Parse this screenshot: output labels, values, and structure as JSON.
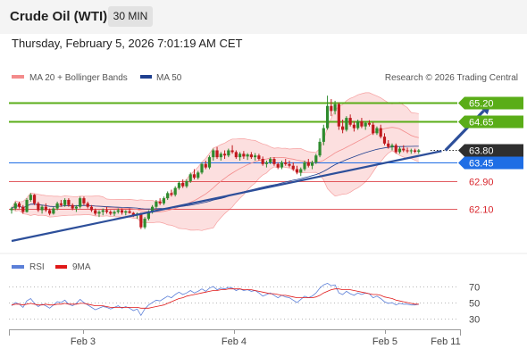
{
  "header": {
    "title": "Crude Oil (WTI)",
    "interval": "30 MIN",
    "timestamp": "Thursday, February 5, 2026 7:01:19 AM CET"
  },
  "colors": {
    "resistance": "#5aad18",
    "support": "#d9272e",
    "trendline": "#2d4f9a",
    "current_price": "#2f2f2f",
    "pivot": "#1f6ee5",
    "candle_up": "#2e8b2e",
    "candle_down": "#c0191e",
    "bollinger": "#f8b8b8",
    "ma50": "#1f3f8f",
    "rsi": "#5b7fd8",
    "rsi_ma": "#e01818"
  },
  "chart_data": [
    {
      "type": "candlestick",
      "legend": [
        {
          "name": "MA 20 + Bollinger Bands",
          "color": "#f38b8b"
        },
        {
          "name": "MA 50",
          "color": "#1f3f8f"
        }
      ],
      "watermark": "Research © 2026 Trading Central",
      "ylim": [
        61.2,
        65.6
      ],
      "levels": [
        {
          "value": 65.2,
          "label": "65.20",
          "kind": "resistance"
        },
        {
          "value": 64.65,
          "label": "64.65",
          "kind": "resistance"
        },
        {
          "value": 63.8,
          "label": "63.80",
          "kind": "current"
        },
        {
          "value": 63.45,
          "label": "63.45",
          "kind": "pivot"
        },
        {
          "value": 62.9,
          "label": "62.90",
          "kind": "support"
        },
        {
          "value": 62.1,
          "label": "62.10",
          "kind": "support"
        }
      ],
      "x_ticks": [
        "Feb 3",
        "Feb 4",
        "Feb 5",
        "Feb 11"
      ],
      "trendline": {
        "from": {
          "bar": 0,
          "value": 61.15
        },
        "to": {
          "bar": 113,
          "value": 63.78
        }
      },
      "forecast_arrow": {
        "from": {
          "bar": 114,
          "value": 63.8
        },
        "to": {
          "bar": 126,
          "value": 65.18
        }
      },
      "candles": [
        [
          62.05,
          62.15,
          61.95,
          62.1
        ],
        [
          62.1,
          62.3,
          62.05,
          62.25
        ],
        [
          62.25,
          62.3,
          62.1,
          62.15
        ],
        [
          62.15,
          62.2,
          61.95,
          62.0
        ],
        [
          62.0,
          62.4,
          61.98,
          62.35
        ],
        [
          62.35,
          62.55,
          62.3,
          62.5
        ],
        [
          62.5,
          62.52,
          62.2,
          62.25
        ],
        [
          62.25,
          62.3,
          62.0,
          62.05
        ],
        [
          62.05,
          62.2,
          61.95,
          62.15
        ],
        [
          62.15,
          62.25,
          62.0,
          62.05
        ],
        [
          62.05,
          62.1,
          61.9,
          61.95
        ],
        [
          61.95,
          62.15,
          61.92,
          62.1
        ],
        [
          62.1,
          62.3,
          62.05,
          62.25
        ],
        [
          62.25,
          62.35,
          62.15,
          62.2
        ],
        [
          62.2,
          62.4,
          62.15,
          62.35
        ],
        [
          62.35,
          62.4,
          62.15,
          62.2
        ],
        [
          62.2,
          62.25,
          62.05,
          62.1
        ],
        [
          62.1,
          62.2,
          62.0,
          62.15
        ],
        [
          62.15,
          62.45,
          62.1,
          62.4
        ],
        [
          62.4,
          62.45,
          62.2,
          62.25
        ],
        [
          62.25,
          62.3,
          62.1,
          62.15
        ],
        [
          62.15,
          62.2,
          62.0,
          62.05
        ],
        [
          62.05,
          62.1,
          61.9,
          61.95
        ],
        [
          61.95,
          62.05,
          61.85,
          62.0
        ],
        [
          62.0,
          62.1,
          61.9,
          62.05
        ],
        [
          62.05,
          62.15,
          61.95,
          62.0
        ],
        [
          62.0,
          62.05,
          61.9,
          61.95
        ],
        [
          61.95,
          62.05,
          61.88,
          62.0
        ],
        [
          62.0,
          62.1,
          61.95,
          62.05
        ],
        [
          62.05,
          62.1,
          61.92,
          61.98
        ],
        [
          61.98,
          62.05,
          61.9,
          62.02
        ],
        [
          62.02,
          62.1,
          61.95,
          61.97
        ],
        [
          61.97,
          62.0,
          61.85,
          61.9
        ],
        [
          61.9,
          61.98,
          61.8,
          61.95
        ],
        [
          61.95,
          61.98,
          61.5,
          61.55
        ],
        [
          61.55,
          61.85,
          61.5,
          61.8
        ],
        [
          61.8,
          62.05,
          61.75,
          62.0
        ],
        [
          62.0,
          62.2,
          61.95,
          62.15
        ],
        [
          62.15,
          62.35,
          62.1,
          62.3
        ],
        [
          62.3,
          62.4,
          62.2,
          62.25
        ],
        [
          62.25,
          62.45,
          62.2,
          62.4
        ],
        [
          62.4,
          62.6,
          62.35,
          62.55
        ],
        [
          62.55,
          62.65,
          62.45,
          62.5
        ],
        [
          62.5,
          62.75,
          62.45,
          62.7
        ],
        [
          62.7,
          62.9,
          62.65,
          62.85
        ],
        [
          62.85,
          62.95,
          62.7,
          62.75
        ],
        [
          62.75,
          62.95,
          62.7,
          62.9
        ],
        [
          62.9,
          63.15,
          62.85,
          63.1
        ],
        [
          63.1,
          63.25,
          62.95,
          63.0
        ],
        [
          63.0,
          63.2,
          62.95,
          63.15
        ],
        [
          63.15,
          63.45,
          63.1,
          63.4
        ],
        [
          63.4,
          63.5,
          63.25,
          63.3
        ],
        [
          63.3,
          63.65,
          63.25,
          63.6
        ],
        [
          63.6,
          63.85,
          63.5,
          63.8
        ],
        [
          63.8,
          63.9,
          63.55,
          63.6
        ],
        [
          63.6,
          63.75,
          63.5,
          63.7
        ],
        [
          63.7,
          63.8,
          63.55,
          63.65
        ],
        [
          63.65,
          63.85,
          63.6,
          63.8
        ],
        [
          63.8,
          63.95,
          63.7,
          63.75
        ],
        [
          63.75,
          63.8,
          63.55,
          63.6
        ],
        [
          63.6,
          63.75,
          63.5,
          63.7
        ],
        [
          63.7,
          63.78,
          63.55,
          63.62
        ],
        [
          63.62,
          63.72,
          63.52,
          63.68
        ],
        [
          63.68,
          63.75,
          63.55,
          63.6
        ],
        [
          63.6,
          63.72,
          63.5,
          63.65
        ],
        [
          63.65,
          63.7,
          63.5,
          63.55
        ],
        [
          63.55,
          63.62,
          63.35,
          63.4
        ],
        [
          63.4,
          63.5,
          63.3,
          63.45
        ],
        [
          63.45,
          63.6,
          63.4,
          63.55
        ],
        [
          63.55,
          63.6,
          63.35,
          63.4
        ],
        [
          63.4,
          63.45,
          63.25,
          63.3
        ],
        [
          63.3,
          63.5,
          63.25,
          63.45
        ],
        [
          63.45,
          63.55,
          63.35,
          63.4
        ],
        [
          63.4,
          63.5,
          63.3,
          63.35
        ],
        [
          63.35,
          63.45,
          63.2,
          63.25
        ],
        [
          63.25,
          63.35,
          63.1,
          63.15
        ],
        [
          63.15,
          63.3,
          63.05,
          63.25
        ],
        [
          63.25,
          63.5,
          63.2,
          63.45
        ],
        [
          63.45,
          63.55,
          63.3,
          63.35
        ],
        [
          63.35,
          63.5,
          63.25,
          63.45
        ],
        [
          63.45,
          63.7,
          63.4,
          63.65
        ],
        [
          63.65,
          64.15,
          63.6,
          64.05
        ],
        [
          64.05,
          64.55,
          63.95,
          64.45
        ],
        [
          64.45,
          65.4,
          64.4,
          65.1
        ],
        [
          65.1,
          65.3,
          64.8,
          64.95
        ],
        [
          64.95,
          65.25,
          64.85,
          65.15
        ],
        [
          65.15,
          65.2,
          64.4,
          64.5
        ],
        [
          64.5,
          64.7,
          64.3,
          64.4
        ],
        [
          64.4,
          64.8,
          64.35,
          64.75
        ],
        [
          64.75,
          64.85,
          64.5,
          64.55
        ],
        [
          64.55,
          64.65,
          64.35,
          64.45
        ],
        [
          64.45,
          64.7,
          64.4,
          64.65
        ],
        [
          64.65,
          64.75,
          64.45,
          64.5
        ],
        [
          64.5,
          64.65,
          64.4,
          64.6
        ],
        [
          64.6,
          64.68,
          64.5,
          64.55
        ],
        [
          64.55,
          64.62,
          64.25,
          64.3
        ],
        [
          64.3,
          64.5,
          64.25,
          64.45
        ],
        [
          64.45,
          64.55,
          64.15,
          64.2
        ],
        [
          64.2,
          64.3,
          63.95,
          64.0
        ],
        [
          64.0,
          64.1,
          63.85,
          63.9
        ],
        [
          63.9,
          64.0,
          63.8,
          63.95
        ],
        [
          63.95,
          64.0,
          63.7,
          63.75
        ],
        [
          63.75,
          63.9,
          63.7,
          63.85
        ],
        [
          63.85,
          63.95,
          63.75,
          63.8
        ],
        [
          63.8,
          63.88,
          63.72,
          63.78
        ],
        [
          63.78,
          63.85,
          63.7,
          63.8
        ],
        [
          63.8,
          63.85,
          63.72,
          63.76
        ],
        [
          63.76,
          63.84,
          63.7,
          63.8
        ]
      ]
    },
    {
      "type": "line",
      "legend": [
        {
          "name": "RSI",
          "color": "#5b7fd8"
        },
        {
          "name": "9MA",
          "color": "#e01818"
        }
      ],
      "ylim": [
        25,
        80
      ],
      "y_ticks": [
        70,
        50,
        30
      ],
      "y_tick_labels": [
        "70",
        "50",
        "30"
      ],
      "series": [
        {
          "name": "RSI",
          "values": [
            46,
            50,
            48,
            44,
            52,
            55,
            49,
            45,
            48,
            46,
            43,
            47,
            51,
            50,
            53,
            48,
            46,
            49,
            54,
            50,
            47,
            44,
            41,
            43,
            45,
            44,
            42,
            44,
            46,
            43,
            45,
            43,
            40,
            42,
            34,
            42,
            47,
            50,
            53,
            52,
            55,
            58,
            56,
            60,
            63,
            60,
            62,
            65,
            62,
            64,
            67,
            64,
            68,
            70,
            66,
            68,
            67,
            69,
            68,
            65,
            67,
            65,
            66,
            64,
            65,
            62,
            58,
            60,
            62,
            59,
            56,
            59,
            57,
            56,
            53,
            50,
            54,
            58,
            56,
            58,
            62,
            68,
            72,
            74,
            71,
            72,
            62,
            60,
            64,
            61,
            59,
            62,
            60,
            62,
            61,
            56,
            58,
            55,
            51,
            49,
            50,
            47,
            49,
            48,
            48,
            47,
            47,
            48
          ]
        },
        {
          "name": "9MA",
          "values": [
            47,
            48,
            48,
            47,
            48,
            49,
            48,
            47,
            47,
            48,
            47,
            47,
            48,
            48,
            49,
            48,
            48,
            48,
            49,
            49,
            48,
            47,
            46,
            46,
            46,
            45,
            44,
            44,
            44,
            44,
            44,
            44,
            44,
            44,
            43,
            43,
            43,
            44,
            45,
            46,
            47,
            49,
            51,
            53,
            55,
            56,
            58,
            59,
            60,
            61,
            62,
            63,
            64,
            65,
            65,
            66,
            66,
            67,
            67,
            67,
            67,
            66,
            66,
            66,
            65,
            64,
            63,
            62,
            61,
            61,
            60,
            59,
            59,
            58,
            57,
            56,
            56,
            56,
            56,
            56,
            57,
            59,
            62,
            64,
            66,
            67,
            67,
            66,
            66,
            66,
            65,
            64,
            63,
            62,
            61,
            60,
            60,
            59,
            57,
            56,
            55,
            53,
            52,
            51,
            50,
            49,
            48,
            48
          ]
        }
      ]
    }
  ]
}
